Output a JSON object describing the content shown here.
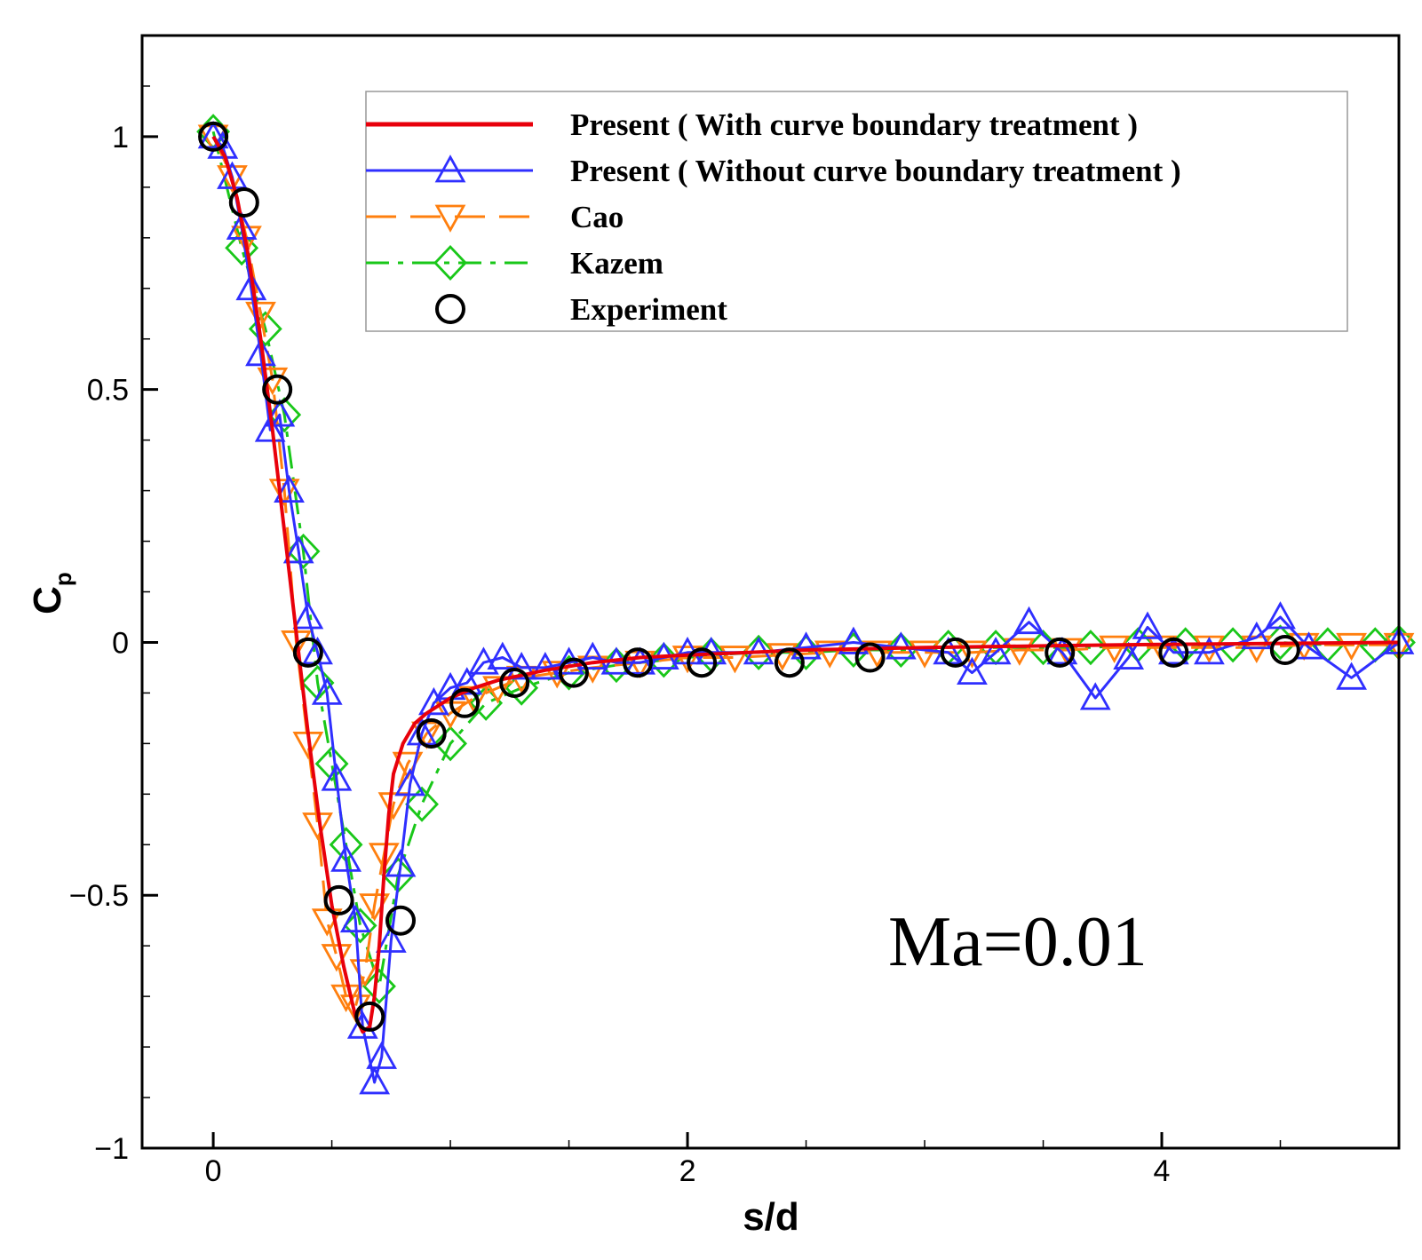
{
  "chart_data": {
    "type": "line",
    "title": "",
    "xlabel": "s/d",
    "ylabel_main": "C",
    "ylabel_sub": "p",
    "xlim": [
      -0.3,
      5.0
    ],
    "ylim": [
      -1.0,
      1.2
    ],
    "x_ticks": [
      {
        "value": 0,
        "label": "0"
      },
      {
        "value": 2,
        "label": "2"
      },
      {
        "value": 4,
        "label": "4"
      }
    ],
    "y_ticks": [
      {
        "value": -1,
        "label": "−1"
      },
      {
        "value": -0.5,
        "label": "−0.5"
      },
      {
        "value": 0,
        "label": "0"
      },
      {
        "value": 0.5,
        "label": "0.5"
      },
      {
        "value": 1,
        "label": "1"
      }
    ],
    "annotation": "Ma=0.01",
    "legend_position": "top-right",
    "series": [
      {
        "key": "present-with",
        "name": "Present ( With curve boundary treatment )",
        "color": "#e8000b",
        "dash": "solid",
        "marker": "none",
        "x": [
          0,
          0.05,
          0.1,
          0.15,
          0.2,
          0.25,
          0.3,
          0.35,
          0.4,
          0.45,
          0.5,
          0.55,
          0.6,
          0.63,
          0.66,
          0.68,
          0.7,
          0.72,
          0.74,
          0.76,
          0.8,
          0.85,
          0.9,
          1.0,
          1.1,
          1.2,
          1.4,
          1.6,
          1.8,
          2.0,
          2.5,
          3.0,
          3.5,
          4.0,
          4.5,
          5.0
        ],
        "y": [
          1.0,
          0.96,
          0.88,
          0.76,
          0.6,
          0.42,
          0.22,
          0.02,
          -0.18,
          -0.36,
          -0.52,
          -0.64,
          -0.74,
          -0.77,
          -0.76,
          -0.7,
          -0.6,
          -0.46,
          -0.34,
          -0.26,
          -0.2,
          -0.16,
          -0.14,
          -0.11,
          -0.09,
          -0.075,
          -0.055,
          -0.04,
          -0.03,
          -0.025,
          -0.015,
          -0.01,
          -0.007,
          -0.004,
          -0.002,
          0.0
        ]
      },
      {
        "key": "present-without",
        "name": "Present ( Without curve boundary treatment )",
        "color": "#2f2fff",
        "dash": "solid",
        "marker": "triangle-up",
        "x": [
          0,
          0.04,
          0.08,
          0.12,
          0.16,
          0.2,
          0.24,
          0.28,
          0.32,
          0.36,
          0.4,
          0.44,
          0.48,
          0.52,
          0.56,
          0.6,
          0.63,
          0.68,
          0.71,
          0.75,
          0.79,
          0.83,
          0.88,
          0.93,
          1.0,
          1.07,
          1.14,
          1.22,
          1.3,
          1.4,
          1.5,
          1.6,
          1.7,
          1.8,
          1.9,
          2.0,
          2.1,
          2.3,
          2.5,
          2.7,
          2.9,
          3.1,
          3.2,
          3.3,
          3.44,
          3.58,
          3.72,
          3.86,
          3.94,
          4.05,
          4.2,
          4.4,
          4.5,
          4.62,
          4.8,
          5.0
        ],
        "y": [
          1.0,
          0.98,
          0.92,
          0.82,
          0.7,
          0.57,
          0.42,
          0.45,
          0.3,
          0.18,
          0.05,
          -0.02,
          -0.1,
          -0.27,
          -0.43,
          -0.55,
          -0.76,
          -0.87,
          -0.82,
          -0.59,
          -0.44,
          -0.28,
          -0.18,
          -0.12,
          -0.09,
          -0.08,
          -0.04,
          -0.03,
          -0.05,
          -0.05,
          -0.04,
          -0.03,
          -0.04,
          -0.04,
          -0.03,
          -0.02,
          -0.02,
          -0.02,
          -0.01,
          0.0,
          -0.01,
          -0.02,
          -0.06,
          -0.02,
          0.04,
          -0.02,
          -0.11,
          -0.03,
          0.03,
          -0.02,
          -0.02,
          0.01,
          0.05,
          -0.01,
          -0.07,
          0.0
        ]
      },
      {
        "key": "cao",
        "name": "Cao",
        "color": "#ff7f0e",
        "dash": "long-dash",
        "marker": "triangle-down",
        "x": [
          0,
          0.08,
          0.14,
          0.2,
          0.25,
          0.3,
          0.35,
          0.4,
          0.44,
          0.48,
          0.52,
          0.56,
          0.6,
          0.64,
          0.68,
          0.72,
          0.76,
          0.82,
          0.9,
          1.0,
          1.1,
          1.2,
          1.3,
          1.45,
          1.6,
          1.8,
          2.0,
          2.2,
          2.4,
          2.6,
          2.8,
          3.0,
          3.2,
          3.4,
          3.6,
          3.8,
          4.0,
          4.2,
          4.4,
          4.6,
          4.8,
          5.0
        ],
        "y": [
          1.0,
          0.92,
          0.8,
          0.65,
          0.52,
          0.3,
          0.0,
          -0.2,
          -0.36,
          -0.55,
          -0.62,
          -0.7,
          -0.72,
          -0.65,
          -0.52,
          -0.42,
          -0.32,
          -0.24,
          -0.18,
          -0.14,
          -0.11,
          -0.09,
          -0.07,
          -0.06,
          -0.05,
          -0.04,
          -0.03,
          -0.03,
          -0.025,
          -0.02,
          -0.02,
          -0.02,
          -0.02,
          -0.015,
          -0.015,
          -0.01,
          -0.01,
          -0.01,
          -0.01,
          -0.005,
          -0.005,
          -0.005
        ]
      },
      {
        "key": "kazem",
        "name": "Kazem",
        "color": "#19c719",
        "dash": "dash-dot",
        "marker": "diamond",
        "x": [
          0,
          0.12,
          0.22,
          0.3,
          0.38,
          0.44,
          0.5,
          0.56,
          0.62,
          0.7,
          0.78,
          0.88,
          1.0,
          1.15,
          1.3,
          1.5,
          1.7,
          1.9,
          2.1,
          2.3,
          2.5,
          2.7,
          2.9,
          3.1,
          3.3,
          3.5,
          3.7,
          3.9,
          4.1,
          4.3,
          4.5,
          4.7,
          4.9,
          5.0
        ],
        "y": [
          1.01,
          0.78,
          0.62,
          0.45,
          0.18,
          -0.08,
          -0.24,
          -0.4,
          -0.56,
          -0.68,
          -0.46,
          -0.32,
          -0.2,
          -0.12,
          -0.09,
          -0.06,
          -0.045,
          -0.035,
          -0.025,
          -0.02,
          -0.02,
          -0.015,
          -0.015,
          -0.01,
          -0.01,
          -0.01,
          -0.01,
          -0.005,
          -0.005,
          -0.005,
          0.0,
          -0.005,
          -0.005,
          0.0
        ]
      },
      {
        "key": "experiment",
        "name": "Experiment",
        "color": "#000000",
        "dash": "none",
        "marker": "circle",
        "x": [
          0.0,
          0.13,
          0.27,
          0.4,
          0.53,
          0.66,
          0.79,
          0.92,
          1.06,
          1.27,
          1.52,
          1.79,
          2.06,
          2.43,
          2.77,
          3.13,
          3.57,
          4.05,
          4.52
        ],
        "y": [
          1.0,
          0.87,
          0.5,
          -0.02,
          -0.51,
          -0.74,
          -0.55,
          -0.18,
          -0.12,
          -0.08,
          -0.06,
          -0.04,
          -0.04,
          -0.04,
          -0.03,
          -0.02,
          -0.02,
          -0.02,
          -0.015
        ]
      }
    ]
  }
}
